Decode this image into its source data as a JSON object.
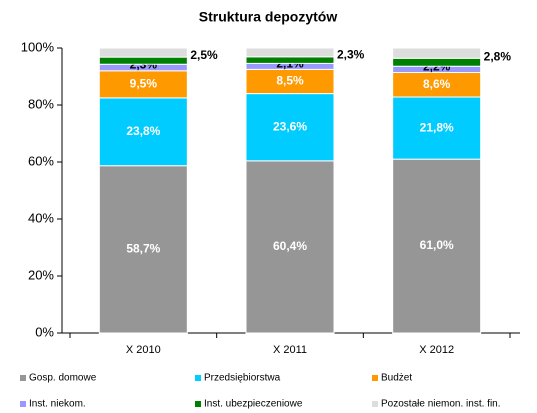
{
  "chart_data": {
    "type": "stacked_bar",
    "title": "Struktura depozytów",
    "categories": [
      "X 2010",
      "X 2011",
      "X 2012"
    ],
    "series": [
      {
        "name": "Gosp. domowe",
        "color": "#969696",
        "values": [
          58.7,
          60.4,
          61.0
        ],
        "value_labels": [
          "58,7%",
          "60,4%",
          "61,0%"
        ]
      },
      {
        "name": "Przedsiębiorstwa",
        "color": "#00ccff",
        "values": [
          23.8,
          23.6,
          21.8
        ],
        "value_labels": [
          "23,8%",
          "23,6%",
          "21,8%"
        ]
      },
      {
        "name": "Budżet",
        "color": "#ff9900",
        "values": [
          9.5,
          8.5,
          8.6
        ],
        "value_labels": [
          "9,5%",
          "8,5%",
          "8,6%"
        ]
      },
      {
        "name": "Inst. niekom.",
        "color": "#9999ff",
        "values": [
          2.3,
          2.1,
          2.2
        ],
        "value_labels": [
          "2,3%",
          "2,1%",
          "2,2%"
        ]
      },
      {
        "name": "Inst. ubezpieczeniowe",
        "color": "#008000",
        "values": [
          2.5,
          2.3,
          2.8
        ],
        "value_labels": [
          "2,5%",
          "2,3%",
          "2,8%"
        ]
      },
      {
        "name": "Pozostałe niemon. inst. fin.",
        "color": "#dddddd",
        "values": [
          3.2,
          3.1,
          3.6
        ]
      }
    ],
    "ylim": [
      0,
      100
    ],
    "yticks": [
      {
        "value": 0,
        "label": "0%"
      },
      {
        "value": 20,
        "label": "20%"
      },
      {
        "value": 40,
        "label": "40%"
      },
      {
        "value": 60,
        "label": "60%"
      },
      {
        "value": 80,
        "label": "80%"
      },
      {
        "value": 100,
        "label": "100%"
      }
    ],
    "grid": false
  }
}
